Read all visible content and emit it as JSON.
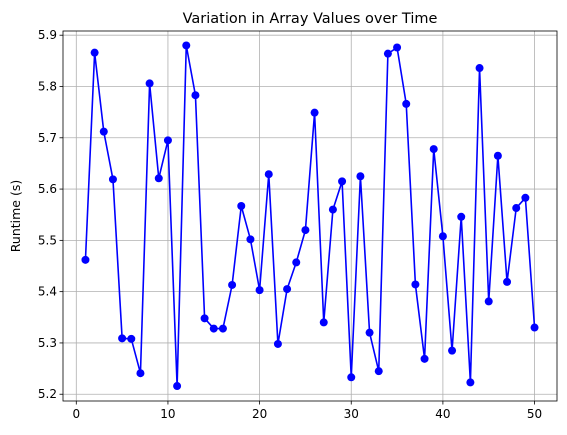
{
  "chart_data": {
    "type": "line",
    "title": "Variation in Array Values over Time",
    "xlabel": "",
    "ylabel": "Runtime (s)",
    "xlim": [
      -1.45,
      52.45
    ],
    "ylim": [
      5.1868,
      5.9082
    ],
    "xticks": [
      0,
      10,
      20,
      30,
      40,
      50
    ],
    "yticks": [
      5.2,
      5.3,
      5.4,
      5.5,
      5.6,
      5.7,
      5.8,
      5.9
    ],
    "ytick_labels": [
      "5.2",
      "5.3",
      "5.4",
      "5.5",
      "5.6",
      "5.7",
      "5.8",
      "5.9"
    ],
    "grid": true,
    "series": [
      {
        "color": "#0000ff",
        "marker": "circle",
        "x": [
          1,
          2,
          3,
          4,
          5,
          6,
          7,
          8,
          9,
          10,
          11,
          12,
          13,
          14,
          15,
          16,
          17,
          18,
          19,
          20,
          21,
          22,
          23,
          24,
          25,
          26,
          27,
          28,
          29,
          30,
          31,
          32,
          33,
          34,
          35,
          36,
          37,
          38,
          39,
          40,
          41,
          42,
          43,
          44,
          45,
          46,
          47,
          48,
          49,
          50
        ],
        "y": [
          5.462,
          5.866,
          5.712,
          5.619,
          5.309,
          5.308,
          5.241,
          5.806,
          5.621,
          5.695,
          5.216,
          5.88,
          5.783,
          5.348,
          5.328,
          5.328,
          5.413,
          5.567,
          5.502,
          5.403,
          5.629,
          5.298,
          5.405,
          5.457,
          5.52,
          5.749,
          5.34,
          5.56,
          5.615,
          5.233,
          5.625,
          5.32,
          5.245,
          5.864,
          5.876,
          5.766,
          5.414,
          5.269,
          5.678,
          5.508,
          5.285,
          5.546,
          5.223,
          5.836,
          5.381,
          5.665,
          5.419,
          5.563,
          5.583,
          5.33
        ]
      }
    ]
  }
}
